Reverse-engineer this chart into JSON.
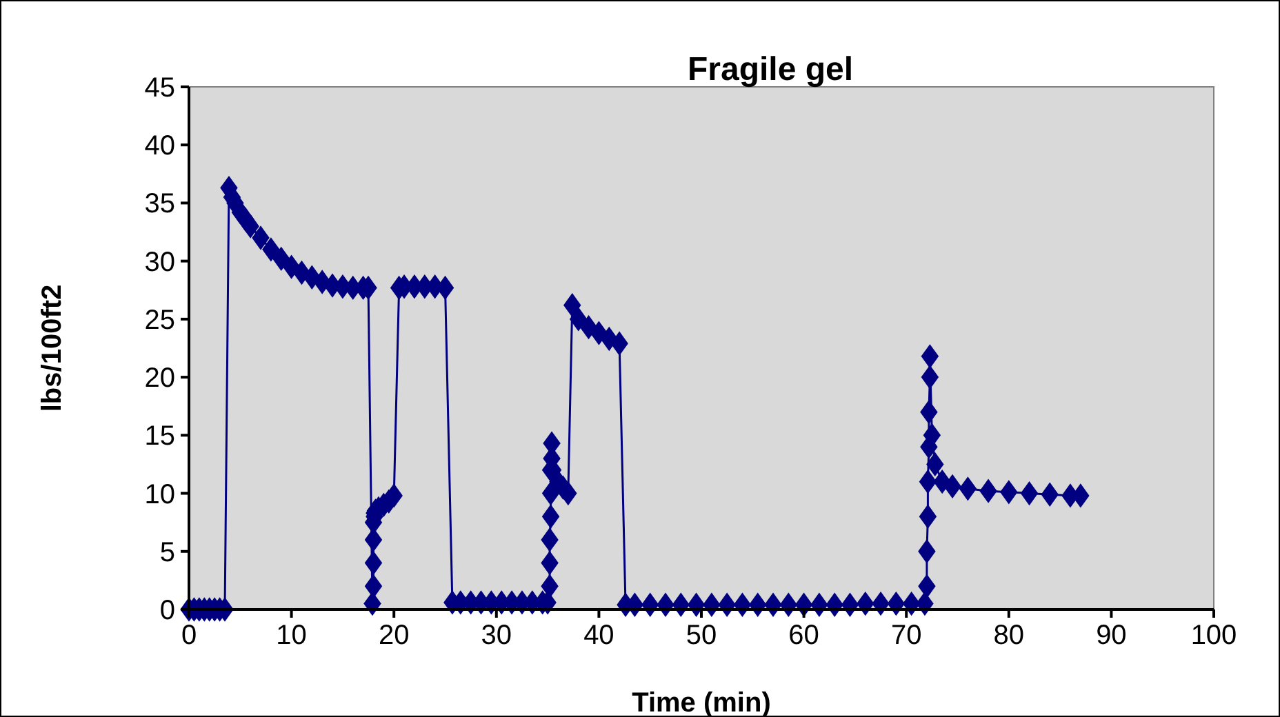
{
  "chart_data": {
    "type": "line",
    "title": "Fragile gel",
    "xlabel": "Time (min)",
    "ylabel": "lbs/100ft2",
    "xlim": [
      0,
      100
    ],
    "ylim": [
      0,
      45
    ],
    "xticks": [
      0,
      10,
      20,
      30,
      40,
      50,
      60,
      70,
      80,
      90,
      100
    ],
    "yticks": [
      0,
      5,
      10,
      15,
      20,
      25,
      30,
      35,
      40,
      45
    ],
    "grid": false,
    "marker": "diamond",
    "line_style": "solid",
    "series": [
      {
        "color": "#000080",
        "x": [
          0,
          0.5,
          1,
          1.5,
          2,
          2.5,
          3,
          3.5,
          3.9,
          4.2,
          4.5,
          5,
          5.5,
          6,
          7,
          8,
          9,
          10,
          11,
          12,
          13,
          14,
          15,
          16,
          17,
          17.5,
          17.9,
          18,
          18,
          18,
          18,
          18.1,
          18.1,
          18.2,
          18.5,
          19,
          19.5,
          20,
          20.5,
          21,
          22,
          23,
          24,
          25,
          25.7,
          26.5,
          27.5,
          28.5,
          29.5,
          30.5,
          31.5,
          32.5,
          33.5,
          34.5,
          35,
          35.2,
          35.2,
          35.2,
          35.3,
          35.3,
          35.3,
          35.4,
          35.4,
          35.5,
          36,
          36.5,
          37,
          37.4,
          38,
          39,
          40,
          41,
          42,
          42.6,
          43.5,
          45,
          46.5,
          48,
          49.5,
          51,
          52.5,
          54,
          55.5,
          57,
          58.5,
          60,
          61.5,
          63,
          64.5,
          66,
          67.5,
          69,
          70.5,
          71.8,
          72,
          72,
          72.1,
          72.1,
          72.2,
          72.2,
          72.3,
          72.3,
          72.5,
          72.8,
          73.5,
          74.5,
          76,
          78,
          80,
          82,
          84,
          86,
          87
        ],
        "values": [
          0,
          0,
          0,
          0,
          0,
          0,
          0,
          0,
          36.3,
          35.5,
          35,
          34.2,
          33.6,
          33,
          32,
          31,
          30.2,
          29.5,
          29,
          28.6,
          28.2,
          27.9,
          27.8,
          27.7,
          27.7,
          27.7,
          0.5,
          2,
          4,
          6,
          7.5,
          8,
          8.3,
          8.5,
          8.7,
          9,
          9.3,
          9.8,
          27.7,
          27.8,
          27.8,
          27.8,
          27.8,
          27.7,
          0.6,
          0.6,
          0.6,
          0.6,
          0.6,
          0.6,
          0.6,
          0.6,
          0.6,
          0.6,
          0.6,
          2,
          4,
          6,
          8,
          10,
          12,
          13,
          14.3,
          12,
          11,
          10.5,
          10,
          26.2,
          25,
          24.3,
          23.8,
          23.3,
          22.9,
          0.4,
          0.4,
          0.4,
          0.4,
          0.4,
          0.4,
          0.4,
          0.4,
          0.4,
          0.4,
          0.4,
          0.4,
          0.4,
          0.4,
          0.4,
          0.4,
          0.5,
          0.5,
          0.5,
          0.5,
          0.5,
          2,
          5,
          8,
          11,
          14,
          17,
          20,
          21.8,
          15,
          12.5,
          11,
          10.6,
          10.4,
          10.2,
          10.1,
          10,
          9.9,
          9.8,
          9.8
        ]
      }
    ]
  }
}
